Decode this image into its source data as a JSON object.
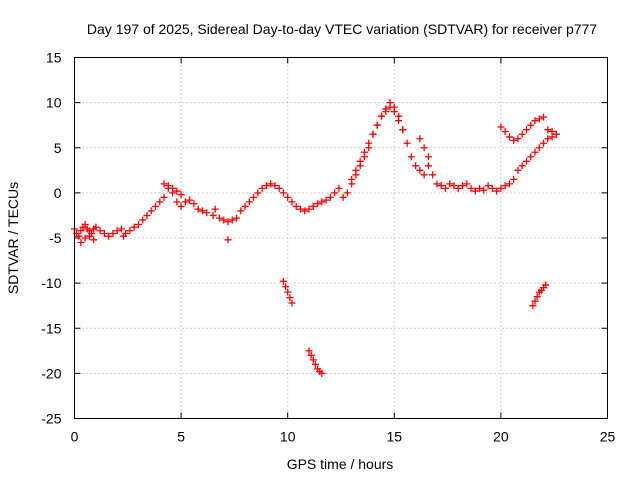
{
  "chart_data": {
    "type": "scatter",
    "marker": "plus",
    "color": "#ff0000",
    "title": "Day 197 of 2025, Sidereal Day-to-day VTEC variation (SDTVAR) for receiver p777",
    "xlabel": "GPS time / hours",
    "ylabel": "SDTVAR / TECUs",
    "xlim": [
      0,
      25
    ],
    "ylim": [
      -25,
      15
    ],
    "xticks": [
      0,
      5,
      10,
      15,
      20,
      25
    ],
    "yticks": [
      -25,
      -20,
      -15,
      -10,
      -5,
      0,
      5,
      10,
      15
    ],
    "grid": true,
    "series": [
      {
        "name": "main",
        "x": [
          0.0,
          0.1,
          0.2,
          0.3,
          0.4,
          0.5,
          0.6,
          0.7,
          0.8,
          0.9,
          1.0,
          1.2,
          1.4,
          1.6,
          1.8,
          2.0,
          2.2,
          2.4,
          2.6,
          2.8,
          3.0,
          3.2,
          3.4,
          3.6,
          3.8,
          4.0,
          4.2,
          4.4,
          4.6,
          4.8,
          5.0,
          5.2,
          5.4,
          5.6,
          5.8,
          6.0,
          6.2,
          6.5,
          6.8,
          7.0,
          7.2,
          7.4,
          7.6,
          7.8,
          8.0,
          8.2,
          8.4,
          8.6,
          8.8,
          9.0,
          9.2,
          9.4,
          9.6,
          9.8,
          10.0,
          10.2,
          10.4,
          10.6,
          10.8,
          11.0,
          11.2,
          11.4,
          11.6,
          11.8,
          12.0,
          12.2,
          12.4,
          12.6,
          12.8,
          13.0,
          13.2,
          13.4,
          13.6,
          13.8,
          14.0,
          14.2,
          14.4,
          14.6,
          14.8,
          15.0,
          15.2,
          15.4,
          15.6,
          15.8,
          16.0,
          16.2,
          16.4,
          16.6,
          16.8,
          17.0,
          17.2,
          17.4,
          17.6,
          17.8,
          18.0,
          18.2,
          18.4,
          18.6,
          18.8,
          19.0,
          19.2,
          19.4,
          19.6,
          19.8,
          20.0,
          20.2,
          20.4,
          20.6,
          20.8,
          21.0,
          21.2,
          21.4,
          21.6,
          21.8,
          22.0,
          22.2,
          22.4,
          22.6
        ],
        "y": [
          -4.0,
          -4.5,
          -4.8,
          -4.2,
          -3.8,
          -3.5,
          -4.0,
          -4.2,
          -4.5,
          -4.0,
          -3.8,
          -4.2,
          -4.5,
          -4.8,
          -4.5,
          -4.2,
          -4.0,
          -4.5,
          -4.2,
          -3.8,
          -3.5,
          -3.0,
          -2.5,
          -2.0,
          -1.5,
          -1.0,
          -0.5,
          0.5,
          0.0,
          -1.0,
          -1.5,
          -1.0,
          -0.8,
          -1.2,
          -1.8,
          -2.0,
          -2.2,
          -2.5,
          -2.8,
          -3.0,
          -3.2,
          -3.0,
          -2.8,
          -2.0,
          -1.5,
          -1.0,
          -0.5,
          0.0,
          0.5,
          0.8,
          1.0,
          0.8,
          0.5,
          0.0,
          -0.5,
          -1.0,
          -1.5,
          -1.8,
          -2.0,
          -1.8,
          -1.5,
          -1.2,
          -1.0,
          -0.8,
          -0.5,
          0.0,
          0.5,
          -0.5,
          0.0,
          1.0,
          2.0,
          3.0,
          4.0,
          5.0,
          6.5,
          7.5,
          8.5,
          9.0,
          9.5,
          9.0,
          8.0,
          7.0,
          5.5,
          4.0,
          3.0,
          2.5,
          2.0,
          3.0,
          2.0,
          1.0,
          0.8,
          0.5,
          1.0,
          0.8,
          0.5,
          0.8,
          1.0,
          0.5,
          0.2,
          0.5,
          0.3,
          0.8,
          0.5,
          0.2,
          0.5,
          0.8,
          1.0,
          1.5,
          2.5,
          3.0,
          3.5,
          4.0,
          4.5,
          5.0,
          5.5,
          6.0,
          6.2,
          6.5
        ]
      },
      {
        "name": "upper-branch",
        "x": [
          13.0,
          13.2,
          13.4,
          13.6,
          13.8,
          14.0,
          14.2,
          14.4,
          14.6,
          14.8,
          15.0,
          15.2,
          15.4,
          20.0,
          20.2,
          20.4,
          20.6,
          20.8,
          21.0,
          21.2,
          21.4,
          21.6,
          21.8,
          22.0,
          22.2,
          22.4,
          22.6,
          4.2,
          4.4,
          4.6,
          4.8,
          5.0,
          16.2,
          16.4,
          16.6
        ],
        "y": [
          1.5,
          2.5,
          3.5,
          4.5,
          5.5,
          6.5,
          7.5,
          8.5,
          9.3,
          10.0,
          9.5,
          8.5,
          7.0,
          7.3,
          6.8,
          6.2,
          5.8,
          6.0,
          6.5,
          7.0,
          7.5,
          8.0,
          8.2,
          8.4,
          7.0,
          6.8,
          6.5,
          1.0,
          0.8,
          0.5,
          0.2,
          -0.2,
          6.0,
          5.0,
          4.0
        ]
      },
      {
        "name": "lower-arcs",
        "x": [
          9.8,
          9.9,
          10.0,
          10.1,
          10.2,
          11.0,
          11.1,
          11.2,
          11.3,
          11.4,
          11.5,
          11.6,
          21.5,
          21.6,
          21.7,
          21.8,
          21.9,
          22.0,
          22.1,
          0.3,
          0.5,
          0.7,
          0.9,
          2.3,
          6.6,
          7.2
        ],
        "y": [
          -9.8,
          -10.4,
          -11.0,
          -11.6,
          -12.2,
          -17.5,
          -18.0,
          -18.5,
          -19.0,
          -19.5,
          -19.8,
          -20.0,
          -12.5,
          -12.0,
          -11.5,
          -11.0,
          -10.8,
          -10.5,
          -10.2,
          -5.5,
          -5.0,
          -4.8,
          -5.2,
          -4.8,
          -1.8,
          -5.2
        ]
      }
    ]
  }
}
